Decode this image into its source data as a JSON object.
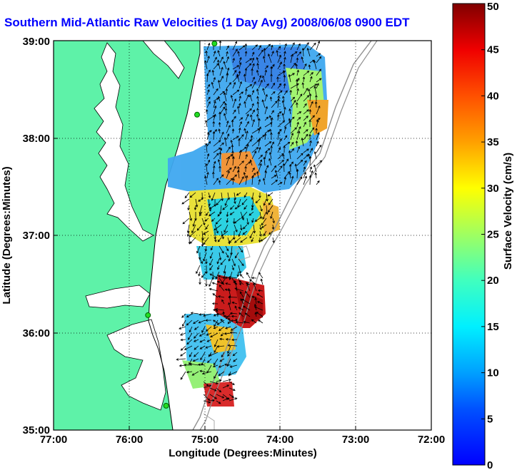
{
  "title": "Southern Mid-Atlantic Raw Velocities (1 Day Avg) 2008/06/08 0900 EDT",
  "map": {
    "xlabel": "Longitude (Degrees:Minutes)",
    "ylabel": "Latitude (Degrees:Minutes)",
    "x_ticks": [
      "77:00",
      "76:00",
      "75:00",
      "74:00",
      "73:00",
      "72:00"
    ],
    "y_ticks": [
      "39:00",
      "38:00",
      "37:00",
      "36:00",
      "35:00"
    ],
    "lon_range": [
      -77,
      -72
    ],
    "lat_range": [
      35,
      39
    ],
    "grid": true,
    "land_color": "#5ef2a8",
    "stations": [
      {
        "lon": -74.87,
        "lat": 38.97
      },
      {
        "lon": -75.1,
        "lat": 38.24
      },
      {
        "lon": -75.75,
        "lat": 36.18
      },
      {
        "lon": -75.51,
        "lat": 35.25
      }
    ]
  },
  "colorbar": {
    "label": "Surface Velocity (cm/s)",
    "min": 0,
    "max": 50,
    "ticks": [
      "0",
      "5",
      "10",
      "15",
      "20",
      "25",
      "30",
      "35",
      "40",
      "45",
      "50"
    ]
  }
}
